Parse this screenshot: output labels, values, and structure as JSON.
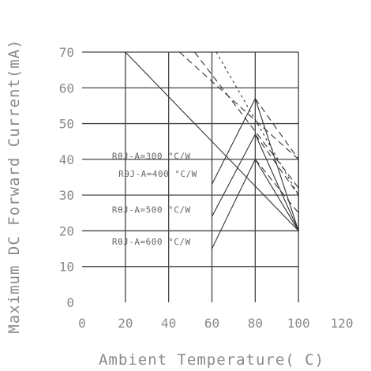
{
  "chart_data": {
    "type": "line",
    "xlabel": "Ambient Temperature( C)",
    "ylabel": "Maximum DC Forward Current(mA)",
    "xlim": [
      0,
      120
    ],
    "ylim": [
      0,
      70
    ],
    "xticks": [
      0,
      20,
      40,
      60,
      80,
      100,
      120
    ],
    "yticks": [
      0,
      10,
      20,
      30,
      40,
      50,
      60,
      70
    ],
    "grid": true,
    "label_colors": {
      "grid": "#444444",
      "curve": "#333333",
      "text": "#8a8a8a"
    },
    "series": [
      {
        "label": "RθJ-A=300 °C/W",
        "style": "solid",
        "x": [
          20,
          100
        ],
        "y": [
          70,
          20
        ]
      },
      {
        "label": "RθJ-A=400 °C/W",
        "style": "solid",
        "x": [
          60,
          80,
          100
        ],
        "y": [
          33,
          57,
          20
        ]
      },
      {
        "label": "RθJ-A=500 °C/W",
        "style": "solid",
        "x": [
          60,
          80,
          100
        ],
        "y": [
          24,
          47,
          20
        ]
      },
      {
        "label": "RθJ-A=600 °C/W",
        "style": "solid",
        "x": [
          60,
          80,
          100
        ],
        "y": [
          15,
          40,
          20
        ]
      },
      {
        "label": "",
        "style": "dashed",
        "x": [
          45,
          100
        ],
        "y": [
          70,
          40
        ]
      },
      {
        "label": "",
        "style": "dashed",
        "x": [
          52,
          100
        ],
        "y": [
          70,
          32
        ]
      },
      {
        "label": "",
        "style": "dotted",
        "x": [
          62,
          100
        ],
        "y": [
          70,
          30
        ]
      },
      {
        "label": "",
        "style": "dashed",
        "x": [
          80,
          100
        ],
        "y": [
          57,
          40
        ]
      },
      {
        "label": "",
        "style": "dashed",
        "x": [
          80,
          100
        ],
        "y": [
          47,
          30
        ]
      },
      {
        "label": "",
        "style": "dashed",
        "x": [
          80,
          100
        ],
        "y": [
          40,
          25
        ]
      },
      {
        "label": "",
        "style": "solid",
        "x": [
          100,
          100
        ],
        "y": [
          40,
          20
        ]
      }
    ],
    "annotations": [
      {
        "text": "RθJ-A=300 °C/W",
        "x": 32,
        "y": 41,
        "line_to": [
          60,
          41
        ]
      },
      {
        "text": "RθJ-A=400 °C/W",
        "x": 35,
        "y": 36,
        "line_to": [
          60,
          36
        ]
      },
      {
        "text": "RθJ-A=500 °C/W",
        "x": 32,
        "y": 26,
        "line_to": [
          60,
          26
        ]
      },
      {
        "text": "RθJ-A=600 °C/W",
        "x": 32,
        "y": 17,
        "line_to": [
          60,
          17
        ]
      }
    ]
  }
}
